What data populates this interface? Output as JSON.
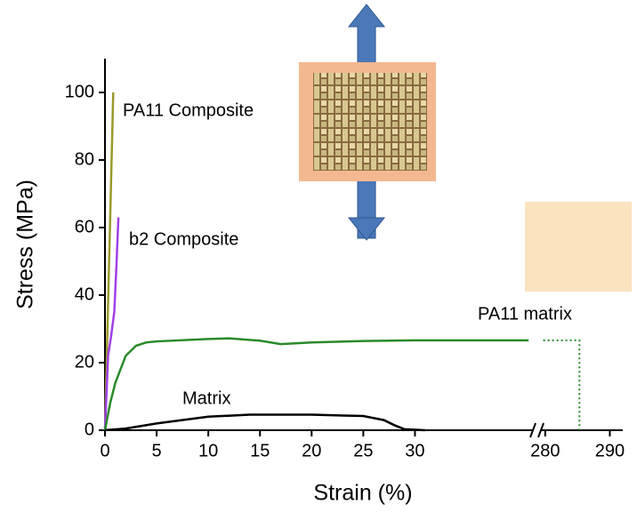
{
  "chart_data": {
    "type": "line",
    "x_label": "Strain (%)",
    "y_label": "Stress (MPa)",
    "xlim": [
      0,
      292
    ],
    "xbreak": [
      41.5,
      279.2
    ],
    "xticks": [
      0,
      5,
      10,
      15,
      20,
      25,
      30,
      280,
      290
    ],
    "ylim": [
      0,
      110
    ],
    "yticks": [
      0,
      20,
      40,
      60,
      80,
      100
    ],
    "series": [
      {
        "name": "PA11 Composite",
        "color": "#9a9a2a",
        "x": [
          0,
          0.2,
          0.4,
          0.6,
          0.8
        ],
        "values": [
          0,
          25,
          50,
          75,
          100
        ]
      },
      {
        "name": "b2 Composite",
        "color": "#a040e8",
        "x": [
          0,
          0.3,
          0.6,
          0.9,
          1.1,
          1.3
        ],
        "values": [
          0,
          22,
          28,
          35,
          48,
          63
        ]
      },
      {
        "name": "PA11 matrix",
        "color": "#2a8a2a",
        "x": [
          0,
          0.5,
          1,
          2,
          3,
          4,
          5,
          10,
          12,
          15,
          17,
          20,
          25,
          30,
          41
        ],
        "values": [
          0,
          8,
          14,
          22,
          25,
          26,
          26.3,
          27,
          27.2,
          26.5,
          25.5,
          26,
          26.4,
          26.6,
          26.6
        ],
        "extension": {
          "x": [
            279.7,
            285.3,
            285.3
          ],
          "values": [
            26.6,
            26.6,
            0
          ],
          "dash": "dotted"
        }
      },
      {
        "name": "Matrix",
        "color": "#000000",
        "x": [
          0,
          2,
          5,
          10,
          14,
          17,
          20,
          25,
          27,
          28,
          29,
          31
        ],
        "values": [
          0,
          0.5,
          2,
          4,
          4.6,
          4.6,
          4.6,
          4.2,
          3,
          1.5,
          0.3,
          0
        ]
      }
    ]
  }
}
